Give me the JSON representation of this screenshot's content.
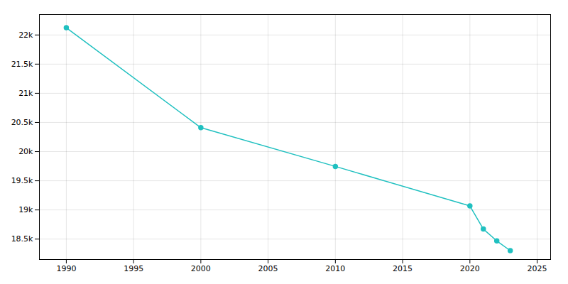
{
  "chart_data": {
    "type": "line",
    "x": [
      1990,
      2000,
      2010,
      2020,
      2021,
      2022,
      2023
    ],
    "values": [
      22124,
      20411,
      19746,
      19068,
      18672,
      18469,
      18302
    ],
    "color": "#20c0c0",
    "marker": "circle",
    "xlim": [
      1988,
      2026
    ],
    "ylim": [
      18150,
      22350
    ],
    "xticks": [
      1990,
      1995,
      2000,
      2005,
      2010,
      2015,
      2020,
      2025
    ],
    "yticks": [
      {
        "value": 18500,
        "label": "18.5k"
      },
      {
        "value": 19000,
        "label": "19k"
      },
      {
        "value": 19500,
        "label": "19.5k"
      },
      {
        "value": 20000,
        "label": "20k"
      },
      {
        "value": 20500,
        "label": "20.5k"
      },
      {
        "value": 21000,
        "label": "21k"
      },
      {
        "value": 21500,
        "label": "21.5k"
      },
      {
        "value": 22000,
        "label": "22k"
      }
    ],
    "grid": true
  }
}
